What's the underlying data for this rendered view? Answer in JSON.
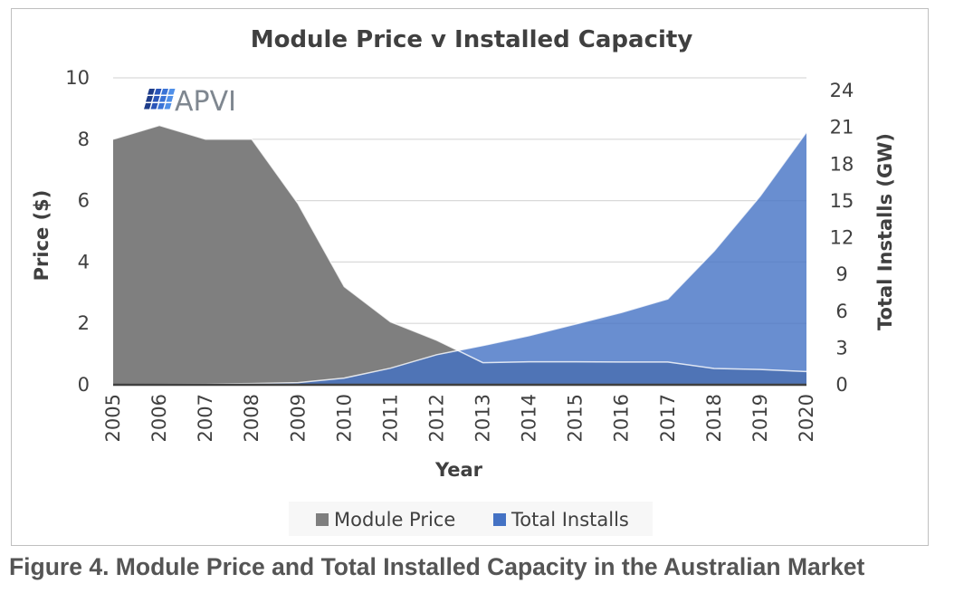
{
  "caption": "Figure 4. Module Price and Total Installed Capacity in the Australian Market",
  "logo": {
    "text": "APVI",
    "colors": [
      "#1f3d8a",
      "#2a55b8",
      "#3a73d6",
      "#4f8fe8"
    ]
  },
  "chart_data": {
    "type": "area",
    "title": "Module Price v Installed Capacity",
    "xlabel": "Year",
    "ylabel_left": "Price ($)",
    "ylabel_right": "Total Installs (GW)",
    "x": [
      "2005",
      "2006",
      "2007",
      "2008",
      "2009",
      "2010",
      "2011",
      "2012",
      "2013",
      "2014",
      "2015",
      "2016",
      "2017",
      "2018",
      "2019",
      "2020"
    ],
    "ylim_left": [
      0,
      10
    ],
    "yticks_left": [
      0,
      2,
      4,
      6,
      8,
      10
    ],
    "ylim_right": [
      0,
      24
    ],
    "yticks_right": [
      0,
      3,
      6,
      9,
      12,
      15,
      18,
      21,
      24
    ],
    "grid": "horizontal",
    "legend_position": "bottom",
    "series": [
      {
        "name": "Module Price",
        "axis": "left",
        "color": "#7f7f7f",
        "values": [
          8.0,
          8.45,
          8.0,
          8.0,
          5.9,
          3.2,
          2.05,
          1.45,
          0.72,
          0.75,
          0.75,
          0.74,
          0.74,
          0.53,
          0.5,
          0.43
        ]
      },
      {
        "name": "Total Installs",
        "axis": "right",
        "color": "#4472c4",
        "values": [
          0.02,
          0.03,
          0.05,
          0.1,
          0.18,
          0.55,
          1.35,
          2.45,
          3.2,
          4.0,
          4.95,
          5.9,
          7.0,
          10.9,
          15.4,
          20.6
        ]
      }
    ]
  }
}
